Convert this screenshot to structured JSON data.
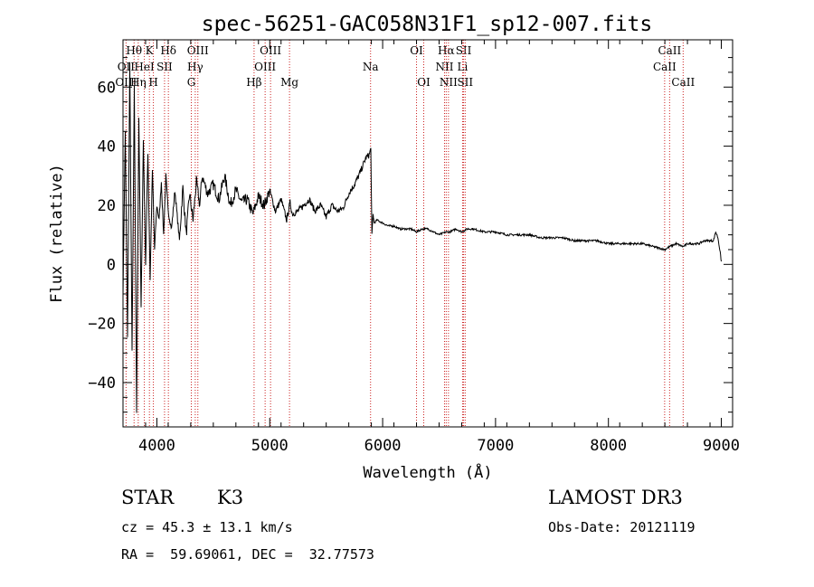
{
  "chart_data": {
    "type": "line",
    "title": "spec-56251-GAC058N31F1_sp12-007.fits",
    "xlabel": "Wavelength (Å)",
    "ylabel": "Flux (relative)",
    "xlim": [
      3700,
      9100
    ],
    "ylim": [
      -55,
      76
    ],
    "x_ticks": [
      4000,
      5000,
      6000,
      7000,
      8000,
      9000
    ],
    "x_tick_labels": [
      "4000",
      "5000",
      "6000",
      "7000",
      "8000",
      "9000"
    ],
    "y_ticks": [
      -40,
      -20,
      0,
      20,
      40,
      60
    ],
    "y_tick_labels": [
      "−40",
      "−20",
      "0",
      "20",
      "40",
      "60"
    ],
    "grid": false,
    "series": [
      {
        "name": "spectrum",
        "color": "#000000",
        "x": [
          3700,
          3720,
          3740,
          3760,
          3780,
          3800,
          3820,
          3840,
          3860,
          3880,
          3900,
          3920,
          3940,
          3960,
          3980,
          4000,
          4020,
          4040,
          4060,
          4080,
          4100,
          4130,
          4160,
          4200,
          4230,
          4260,
          4290,
          4320,
          4350,
          4380,
          4400,
          4450,
          4500,
          4550,
          4600,
          4650,
          4700,
          4750,
          4800,
          4850,
          4900,
          4950,
          5000,
          5050,
          5100,
          5150,
          5180,
          5200,
          5250,
          5300,
          5350,
          5400,
          5450,
          5500,
          5550,
          5600,
          5650,
          5700,
          5750,
          5800,
          5850,
          5880,
          5895,
          5905,
          5915,
          5925,
          5950,
          6000,
          6050,
          6100,
          6150,
          6200,
          6250,
          6300,
          6350,
          6400,
          6450,
          6500,
          6563,
          6600,
          6650,
          6700,
          6750,
          6800,
          6900,
          7000,
          7100,
          7200,
          7300,
          7400,
          7500,
          7600,
          7700,
          7800,
          7900,
          8000,
          8100,
          8200,
          8300,
          8400,
          8498,
          8542,
          8600,
          8662,
          8700,
          8750,
          8800,
          8850,
          8900,
          8930,
          8950,
          8970,
          8990,
          9000
        ],
        "y": [
          -10,
          45,
          -25,
          68,
          -30,
          60,
          -50,
          50,
          -15,
          42,
          0,
          38,
          -5,
          32,
          5,
          20,
          15,
          28,
          10,
          30,
          18,
          12,
          25,
          8,
          26,
          10,
          24,
          15,
          28,
          20,
          30,
          24,
          27,
          22,
          30,
          20,
          25,
          21,
          22,
          17,
          23,
          20,
          25,
          18,
          22,
          15,
          21,
          17,
          18,
          20,
          22,
          18,
          20,
          16,
          20,
          18,
          19,
          24,
          27,
          31,
          36,
          37,
          39,
          10,
          17,
          14,
          15,
          14,
          13,
          13,
          12,
          12,
          12,
          11,
          12,
          12,
          11,
          10,
          11,
          11,
          12,
          11,
          12,
          12,
          11,
          11,
          10,
          10,
          10,
          9,
          9,
          9,
          8,
          8,
          8,
          7,
          7,
          7,
          7,
          6,
          5,
          6,
          7,
          6,
          7,
          7,
          7,
          8,
          8,
          8,
          11,
          9,
          4,
          1
        ]
      }
    ],
    "line_markers": [
      {
        "label": "Hθ",
        "wave": 3798,
        "row": 0
      },
      {
        "label": "OII",
        "wave": 3727,
        "row": 1
      },
      {
        "label": "OIII",
        "wave": 3727,
        "row": 2
      },
      {
        "label": "K",
        "wave": 3934,
        "row": 0
      },
      {
        "label": "HeI",
        "wave": 3889,
        "row": 1
      },
      {
        "label": "Hη",
        "wave": 3835,
        "row": 2
      },
      {
        "label": "Hδ",
        "wave": 4102,
        "row": 0
      },
      {
        "label": "SII",
        "wave": 4068,
        "row": 1
      },
      {
        "label": "H",
        "wave": 3969,
        "row": 2
      },
      {
        "label": "OIII",
        "wave": 4363,
        "row": 0
      },
      {
        "label": "Hγ",
        "wave": 4340,
        "row": 1
      },
      {
        "label": "G",
        "wave": 4305,
        "row": 2
      },
      {
        "label": "OIII",
        "wave": 5007,
        "row": 0
      },
      {
        "label": "OIII",
        "wave": 4959,
        "row": 1
      },
      {
        "label": "Hβ",
        "wave": 4861,
        "row": 2
      },
      {
        "label": "Mg",
        "wave": 5175,
        "row": 2
      },
      {
        "label": "Na",
        "wave": 5893,
        "row": 1
      },
      {
        "label": "OI",
        "wave": 6300,
        "row": 0
      },
      {
        "label": "OI",
        "wave": 6364,
        "row": 2
      },
      {
        "label": "Hα",
        "wave": 6563,
        "row": 0
      },
      {
        "label": "NII",
        "wave": 6548,
        "row": 1
      },
      {
        "label": "NII",
        "wave": 6583,
        "row": 2
      },
      {
        "label": "SII",
        "wave": 6717,
        "row": 0
      },
      {
        "label": "Li",
        "wave": 6708,
        "row": 1
      },
      {
        "label": "SII",
        "wave": 6731,
        "row": 2
      },
      {
        "label": "CaII",
        "wave": 8542,
        "row": 0
      },
      {
        "label": "CaII",
        "wave": 8498,
        "row": 1
      },
      {
        "label": "CaII",
        "wave": 8662,
        "row": 2
      }
    ],
    "line_marker_color": "#cc2222"
  },
  "info": {
    "object_class": "STAR",
    "subclass": "K3",
    "survey": "LAMOST DR3",
    "cz": "cz = 45.3 ± 13.1 km/s",
    "obs_date": "Obs-Date: 20121119",
    "coords": "RA =  59.69061, DEC =  32.77573"
  }
}
